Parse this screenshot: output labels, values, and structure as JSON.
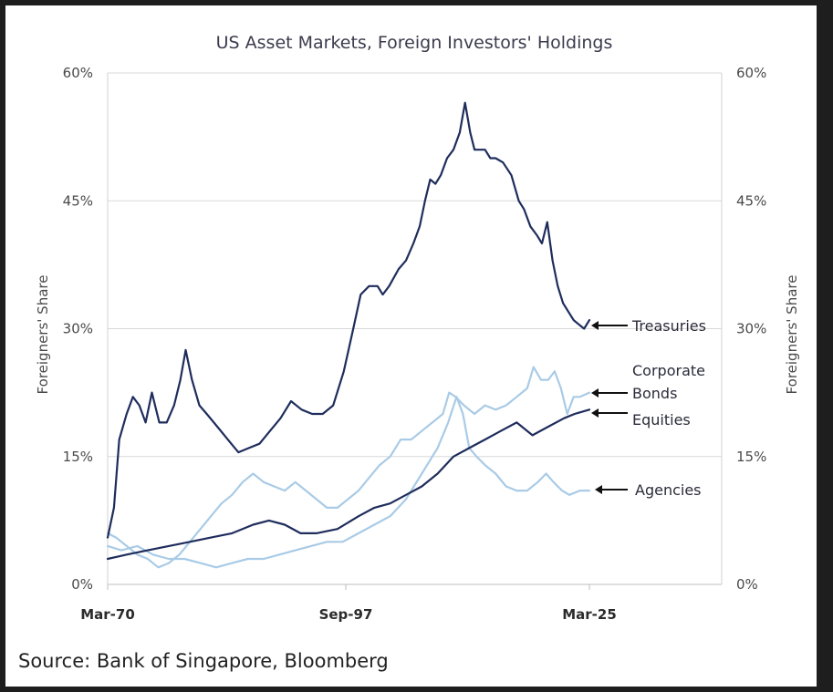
{
  "chart_data": {
    "type": "line",
    "title": "US Asset Markets, Foreign Investors' Holdings",
    "ylabel": "Foreigners' Share",
    "ylabel_right": "Foreigners' Share",
    "xlim": [
      "Mar-70",
      "Mar-25"
    ],
    "ylim": [
      0,
      60
    ],
    "x_ticks": [
      "Mar-70",
      "Sep-97",
      "Mar-25"
    ],
    "y_ticks": [
      "0%",
      "15%",
      "30%",
      "45%",
      "60%"
    ],
    "grid": "horizontal",
    "source": "Source: Bank of Singapore, Bloomberg",
    "colors": {
      "dark": "#1f2d5c",
      "light": "#a9cbe6"
    },
    "series": [
      {
        "name": "Treasuries",
        "color": "#1f2d5c",
        "points": [
          [
            1970.2,
            5.5
          ],
          [
            1970.8,
            9
          ],
          [
            1971.3,
            17
          ],
          [
            1972.0,
            20
          ],
          [
            1972.6,
            22
          ],
          [
            1973.2,
            21
          ],
          [
            1973.8,
            19
          ],
          [
            1974.4,
            22.5
          ],
          [
            1975.1,
            19
          ],
          [
            1975.8,
            19
          ],
          [
            1976.5,
            21
          ],
          [
            1977.1,
            24
          ],
          [
            1977.6,
            27.5
          ],
          [
            1978.2,
            24
          ],
          [
            1978.9,
            21
          ],
          [
            1979.6,
            20
          ],
          [
            1980.6,
            18.5
          ],
          [
            1981.6,
            17
          ],
          [
            1982.6,
            15.5
          ],
          [
            1983.6,
            16
          ],
          [
            1984.6,
            16.5
          ],
          [
            1985.6,
            18
          ],
          [
            1986.6,
            19.5
          ],
          [
            1987.6,
            21.5
          ],
          [
            1988.6,
            20.5
          ],
          [
            1989.6,
            20
          ],
          [
            1990.6,
            20
          ],
          [
            1991.6,
            21
          ],
          [
            1992.6,
            25
          ],
          [
            1993.5,
            30
          ],
          [
            1994.2,
            34
          ],
          [
            1995.0,
            35
          ],
          [
            1995.8,
            35
          ],
          [
            1996.3,
            34
          ],
          [
            1996.9,
            35
          ],
          [
            1997.8,
            37
          ],
          [
            1998.5,
            38
          ],
          [
            1999.2,
            40
          ],
          [
            1999.8,
            42
          ],
          [
            2000.3,
            45
          ],
          [
            2000.8,
            47.5
          ],
          [
            2001.3,
            47
          ],
          [
            2001.8,
            48
          ],
          [
            2002.4,
            50
          ],
          [
            2003.0,
            51
          ],
          [
            2003.6,
            53
          ],
          [
            2004.1,
            56.5
          ],
          [
            2004.6,
            53
          ],
          [
            2005.0,
            51
          ],
          [
            2005.5,
            51
          ],
          [
            2006.0,
            51
          ],
          [
            2006.5,
            50
          ],
          [
            2007.0,
            50
          ],
          [
            2007.7,
            49.5
          ],
          [
            2008.5,
            48
          ],
          [
            2009.2,
            45
          ],
          [
            2009.7,
            44
          ],
          [
            2010.3,
            42
          ],
          [
            2010.9,
            41
          ],
          [
            2011.4,
            40
          ],
          [
            2011.9,
            42.5
          ],
          [
            2012.4,
            38
          ],
          [
            2012.9,
            35
          ],
          [
            2013.4,
            33
          ],
          [
            2013.9,
            32
          ],
          [
            2014.4,
            31
          ],
          [
            2014.9,
            30.5
          ],
          [
            2015.4,
            30
          ],
          [
            2015.9,
            31
          ]
        ]
      },
      {
        "name": "Corporate Bonds",
        "color": "#a9cbe6",
        "points": [
          [
            1970.2,
            6
          ],
          [
            1971.0,
            5.5
          ],
          [
            1972.0,
            4.5
          ],
          [
            1973.0,
            3.5
          ],
          [
            1974.0,
            3
          ],
          [
            1975.0,
            2
          ],
          [
            1976.0,
            2.5
          ],
          [
            1977.0,
            3.5
          ],
          [
            1978.0,
            5
          ],
          [
            1979.0,
            6.5
          ],
          [
            1980.0,
            8
          ],
          [
            1981.0,
            9.5
          ],
          [
            1982.0,
            10.5
          ],
          [
            1983.0,
            12
          ],
          [
            1984.0,
            13
          ],
          [
            1985.0,
            12
          ],
          [
            1986.0,
            11.5
          ],
          [
            1987.0,
            11
          ],
          [
            1988.0,
            12
          ],
          [
            1989.0,
            11
          ],
          [
            1990.0,
            10
          ],
          [
            1991.0,
            9
          ],
          [
            1992.0,
            9
          ],
          [
            1993.0,
            10
          ],
          [
            1994.0,
            11
          ],
          [
            1995.0,
            12.5
          ],
          [
            1996.0,
            14
          ],
          [
            1997.0,
            15
          ],
          [
            1998.0,
            17
          ],
          [
            1999.0,
            17
          ],
          [
            2000.0,
            18
          ],
          [
            2001.0,
            19
          ],
          [
            2002.0,
            20
          ],
          [
            2002.6,
            22.5
          ],
          [
            2003.2,
            22
          ],
          [
            2004.0,
            21
          ],
          [
            2005.0,
            20
          ],
          [
            2006.0,
            21
          ],
          [
            2007.0,
            20.5
          ],
          [
            2008.0,
            21
          ],
          [
            2009.0,
            22
          ],
          [
            2010.0,
            23
          ],
          [
            2010.6,
            25.5
          ],
          [
            2011.3,
            24
          ],
          [
            2012.0,
            24
          ],
          [
            2012.6,
            25
          ],
          [
            2013.2,
            23
          ],
          [
            2013.8,
            20
          ],
          [
            2014.4,
            22
          ],
          [
            2015.0,
            22
          ],
          [
            2015.9,
            22.5
          ]
        ]
      },
      {
        "name": "Equities",
        "color": "#1f2d5c",
        "points": [
          [
            1970.2,
            3
          ],
          [
            1972.0,
            3.5
          ],
          [
            1974.0,
            4
          ],
          [
            1976.0,
            4.5
          ],
          [
            1978.0,
            5
          ],
          [
            1980.0,
            5.5
          ],
          [
            1982.0,
            6
          ],
          [
            1984.0,
            7
          ],
          [
            1985.5,
            7.5
          ],
          [
            1987.0,
            7
          ],
          [
            1988.5,
            6
          ],
          [
            1990.0,
            6
          ],
          [
            1992.0,
            6.5
          ],
          [
            1994.0,
            8
          ],
          [
            1995.5,
            9
          ],
          [
            1997.0,
            9.5
          ],
          [
            1998.5,
            10.5
          ],
          [
            2000.0,
            11.5
          ],
          [
            2001.5,
            13
          ],
          [
            2003.0,
            15
          ],
          [
            2004.5,
            16
          ],
          [
            2006.0,
            17
          ],
          [
            2007.5,
            18
          ],
          [
            2009.0,
            19
          ],
          [
            2010.5,
            17.5
          ],
          [
            2012.0,
            18.5
          ],
          [
            2013.5,
            19.5
          ],
          [
            2014.5,
            20
          ],
          [
            2015.9,
            20.5
          ]
        ]
      },
      {
        "name": "Agencies",
        "color": "#a9cbe6",
        "points": [
          [
            1970.2,
            4.5
          ],
          [
            1971.5,
            4
          ],
          [
            1973.0,
            4.5
          ],
          [
            1974.5,
            3.5
          ],
          [
            1976.0,
            3
          ],
          [
            1977.5,
            3
          ],
          [
            1979.0,
            2.5
          ],
          [
            1980.5,
            2
          ],
          [
            1982.0,
            2.5
          ],
          [
            1983.5,
            3
          ],
          [
            1985.0,
            3
          ],
          [
            1986.5,
            3.5
          ],
          [
            1988.0,
            4
          ],
          [
            1989.5,
            4.5
          ],
          [
            1991.0,
            5
          ],
          [
            1992.5,
            5
          ],
          [
            1994.0,
            6
          ],
          [
            1995.5,
            7
          ],
          [
            1997.0,
            8
          ],
          [
            1998.5,
            10
          ],
          [
            2000.0,
            13
          ],
          [
            2001.5,
            16
          ],
          [
            2002.5,
            19
          ],
          [
            2003.3,
            22
          ],
          [
            2003.9,
            20
          ],
          [
            2004.5,
            16
          ],
          [
            2005.2,
            15
          ],
          [
            2006.0,
            14
          ],
          [
            2007.0,
            13
          ],
          [
            2008.0,
            11.5
          ],
          [
            2009.0,
            11
          ],
          [
            2010.0,
            11
          ],
          [
            2011.0,
            12
          ],
          [
            2011.8,
            13
          ],
          [
            2012.5,
            12
          ],
          [
            2013.3,
            11
          ],
          [
            2014.0,
            10.5
          ],
          [
            2015.0,
            11
          ],
          [
            2015.9,
            11
          ]
        ]
      }
    ],
    "annotations": [
      "Treasuries",
      "Corporate",
      "Bonds",
      "Equities",
      "Agencies"
    ]
  }
}
